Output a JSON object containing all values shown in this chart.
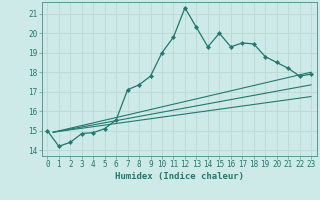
{
  "xlabel": "Humidex (Indice chaleur)",
  "bg_color": "#ceeae8",
  "grid_color": "#b8d8d5",
  "line_color": "#1e7a6e",
  "spine_color": "#5a9a90",
  "xlim": [
    -0.5,
    23.5
  ],
  "ylim": [
    13.7,
    21.6
  ],
  "yticks": [
    14,
    15,
    16,
    17,
    18,
    19,
    20,
    21
  ],
  "xticks": [
    0,
    1,
    2,
    3,
    4,
    5,
    6,
    7,
    8,
    9,
    10,
    11,
    12,
    13,
    14,
    15,
    16,
    17,
    18,
    19,
    20,
    21,
    22,
    23
  ],
  "xtick_labels": [
    "0",
    "1",
    "2",
    "3",
    "4",
    "5",
    "6",
    "7",
    "8",
    "9",
    "10",
    "11",
    "12",
    "13",
    "14",
    "15",
    "16",
    "17",
    "18",
    "19",
    "20",
    "21",
    "22",
    "23"
  ],
  "series": {
    "main": {
      "x": [
        0,
        1,
        2,
        3,
        4,
        5,
        6,
        7,
        8,
        9,
        10,
        11,
        12,
        13,
        14,
        15,
        16,
        17,
        18,
        19,
        20,
        21,
        22,
        23
      ],
      "y": [
        15.0,
        14.2,
        14.4,
        14.85,
        14.9,
        15.1,
        15.55,
        17.1,
        17.35,
        17.8,
        19.0,
        19.8,
        21.3,
        20.3,
        19.3,
        20.0,
        19.3,
        19.5,
        19.45,
        18.8,
        18.5,
        18.2,
        17.8,
        17.9
      ]
    },
    "line1": {
      "x": [
        0.5,
        23
      ],
      "y": [
        14.92,
        18.0
      ]
    },
    "line2": {
      "x": [
        0.5,
        23
      ],
      "y": [
        14.92,
        17.35
      ]
    },
    "line3": {
      "x": [
        0.5,
        23
      ],
      "y": [
        14.92,
        16.75
      ]
    }
  }
}
